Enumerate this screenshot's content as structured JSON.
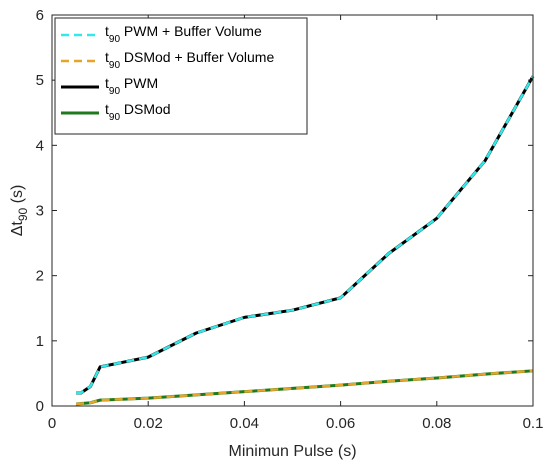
{
  "chart_data": {
    "type": "line",
    "title": "",
    "xlabel": "Minimun Pulse (s)",
    "ylabel": {
      "main": "Δt",
      "sub": "90",
      "unit": " (s)"
    },
    "xlim": [
      0,
      0.1
    ],
    "ylim": [
      0,
      6
    ],
    "xticks": [
      0,
      0.02,
      0.04,
      0.06,
      0.08,
      0.1
    ],
    "xtick_labels": [
      "0",
      "0.02",
      "0.04",
      "0.06",
      "0.08",
      "0.1"
    ],
    "yticks": [
      0,
      1,
      2,
      3,
      4,
      5,
      6
    ],
    "ytick_labels": [
      "0",
      "1",
      "2",
      "3",
      "4",
      "5",
      "6"
    ],
    "grid": false,
    "legend_position": "top-left",
    "series": [
      {
        "name": {
          "main": "t",
          "sub": "90",
          "rest": " PWM"
        },
        "color": "#000000",
        "dash": "solid",
        "x": [
          0.005,
          0.006,
          0.008,
          0.01,
          0.02,
          0.03,
          0.04,
          0.05,
          0.06,
          0.07,
          0.08,
          0.09,
          0.1
        ],
        "y": [
          0.2,
          0.2,
          0.3,
          0.6,
          0.75,
          1.12,
          1.36,
          1.47,
          1.66,
          2.34,
          2.88,
          3.76,
          5.06
        ]
      },
      {
        "name": {
          "main": "t",
          "sub": "90",
          "rest": " PWM + Buffer Volume"
        },
        "color": "#33e8e8",
        "dash": "dashed",
        "x": [
          0.005,
          0.006,
          0.008,
          0.01,
          0.02,
          0.03,
          0.04,
          0.05,
          0.06,
          0.07,
          0.08,
          0.09,
          0.1
        ],
        "y": [
          0.2,
          0.2,
          0.3,
          0.6,
          0.75,
          1.12,
          1.36,
          1.47,
          1.66,
          2.34,
          2.88,
          3.76,
          5.06
        ]
      },
      {
        "name": {
          "main": "t",
          "sub": "90",
          "rest": " DSMod"
        },
        "color": "#1f7a1f",
        "dash": "solid",
        "x": [
          0.005,
          0.008,
          0.01,
          0.02,
          0.03,
          0.04,
          0.05,
          0.06,
          0.07,
          0.08,
          0.09,
          0.1
        ],
        "y": [
          0.03,
          0.05,
          0.09,
          0.12,
          0.17,
          0.22,
          0.27,
          0.32,
          0.38,
          0.43,
          0.49,
          0.54
        ]
      },
      {
        "name": {
          "main": "t",
          "sub": "90",
          "rest": " DSMod  + Buffer Volume"
        },
        "color": "#e6a52a",
        "dash": "dashed",
        "x": [
          0.005,
          0.008,
          0.01,
          0.02,
          0.03,
          0.04,
          0.05,
          0.06,
          0.07,
          0.08,
          0.09,
          0.1
        ],
        "y": [
          0.03,
          0.05,
          0.09,
          0.12,
          0.17,
          0.22,
          0.27,
          0.32,
          0.38,
          0.43,
          0.49,
          0.54
        ]
      }
    ],
    "legend_order": [
      1,
      3,
      0,
      2
    ]
  }
}
